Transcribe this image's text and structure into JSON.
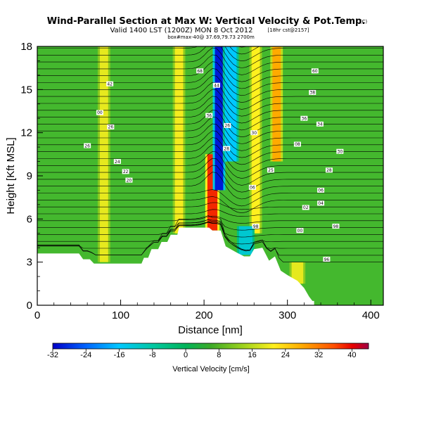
{
  "header": {
    "title": "Wind-Parallel Section at Max W: Vertical Velocity & Pot.Temp.",
    "title_mark": "(C)",
    "valid_line": "Valid 1400 LST (1200Z) MON 8 Oct 2012",
    "valid_tag": "[18hr cst@2157]",
    "subline": "box#max-40@ 37.69,79.73 2700m"
  },
  "chart_data": {
    "type": "heatmap",
    "xlabel": "Distance [nm]",
    "ylabel": "Height [Kft MSL]",
    "xlim": [
      0,
      415
    ],
    "ylim": [
      0,
      18
    ],
    "xticks": [
      0,
      100,
      200,
      300,
      400
    ],
    "xtick_labels": [
      "0",
      "100",
      "200",
      "300",
      "400"
    ],
    "yticks": [
      0,
      3,
      6,
      9,
      12,
      15,
      18
    ],
    "ytick_labels": [
      "0",
      "3",
      "6",
      "9",
      "12",
      "15",
      "18"
    ],
    "colorbar": {
      "label": "Vertical Velocity [cm/s]",
      "min": -32,
      "max": 44,
      "ticks": [
        -32,
        -24,
        -16,
        -8,
        0,
        8,
        16,
        24,
        32,
        40
      ],
      "tick_labels": [
        "-32",
        "-24",
        "-16",
        "-8",
        "0",
        "8",
        "16",
        "24",
        "32",
        "40"
      ]
    },
    "terrain": [
      [
        0,
        3.6
      ],
      [
        50,
        3.6
      ],
      [
        55,
        3.2
      ],
      [
        63,
        3.2
      ],
      [
        68,
        2.9
      ],
      [
        125,
        2.9
      ],
      [
        128,
        3.3
      ],
      [
        133,
        3.3
      ],
      [
        137,
        3.9
      ],
      [
        145,
        3.9
      ],
      [
        149,
        4.4
      ],
      [
        156,
        4.4
      ],
      [
        160,
        4.9
      ],
      [
        168,
        4.9
      ],
      [
        170,
        5.4
      ],
      [
        206,
        5.4
      ],
      [
        210,
        5.2
      ],
      [
        220,
        5.2
      ],
      [
        226,
        4.1
      ],
      [
        238,
        3.7
      ],
      [
        248,
        3.4
      ],
      [
        255,
        3.4
      ],
      [
        260,
        3.9
      ],
      [
        270,
        4.0
      ],
      [
        278,
        3.1
      ],
      [
        285,
        3.4
      ],
      [
        292,
        2.4
      ],
      [
        300,
        2.1
      ],
      [
        312,
        1.7
      ],
      [
        320,
        1.2
      ],
      [
        326,
        0.6
      ],
      [
        330,
        0.3
      ],
      [
        332,
        0.3
      ],
      [
        332,
        0
      ],
      [
        0,
        0
      ]
    ],
    "vertical_velocity_features": [
      {
        "x_center": 80,
        "width": 10,
        "z_bottom": 3,
        "z_top": 18,
        "w": 14
      },
      {
        "x_center": 170,
        "width": 10,
        "z_bottom": 5,
        "z_top": 18,
        "w": 15
      },
      {
        "x_center": 210,
        "width": 12,
        "z_bottom": 5.2,
        "z_top": 10.5,
        "w": 36
      },
      {
        "x_center": 218,
        "width": 10,
        "z_bottom": 8,
        "z_top": 18,
        "w": -30
      },
      {
        "x_center": 232,
        "width": 14,
        "z_bottom": 10,
        "z_top": 18,
        "w": -16
      },
      {
        "x_center": 262,
        "width": 10,
        "z_bottom": 5,
        "z_top": 18,
        "w": 16
      },
      {
        "x_center": 287,
        "width": 10,
        "z_bottom": 10,
        "z_top": 18,
        "w": 24
      },
      {
        "x_center": 250,
        "width": 16,
        "z_bottom": 3.5,
        "z_top": 5.5,
        "w": -12
      },
      {
        "x_center": 312,
        "width": 14,
        "z_bottom": 1.5,
        "z_top": 3.0,
        "w": 14
      }
    ],
    "isentrope_labels": [
      {
        "x": 195,
        "z": 16.3,
        "label": "68"
      },
      {
        "x": 333,
        "z": 16.3,
        "label": "60"
      },
      {
        "x": 87,
        "z": 15.4,
        "label": "42"
      },
      {
        "x": 215,
        "z": 15.3,
        "label": "44"
      },
      {
        "x": 330,
        "z": 14.8,
        "label": "38"
      },
      {
        "x": 75,
        "z": 13.4,
        "label": "00"
      },
      {
        "x": 206,
        "z": 13.2,
        "label": "36"
      },
      {
        "x": 320,
        "z": 13.0,
        "label": "36"
      },
      {
        "x": 339,
        "z": 12.6,
        "label": "34"
      },
      {
        "x": 88,
        "z": 12.4,
        "label": "26"
      },
      {
        "x": 228,
        "z": 12.5,
        "label": "26"
      },
      {
        "x": 260,
        "z": 12.0,
        "label": "30"
      },
      {
        "x": 312,
        "z": 11.2,
        "label": "08"
      },
      {
        "x": 60,
        "z": 11.1,
        "label": "26"
      },
      {
        "x": 227,
        "z": 10.9,
        "label": "28"
      },
      {
        "x": 363,
        "z": 10.7,
        "label": "30"
      },
      {
        "x": 96,
        "z": 10.0,
        "label": "24"
      },
      {
        "x": 280,
        "z": 9.4,
        "label": "25"
      },
      {
        "x": 106,
        "z": 9.3,
        "label": "22"
      },
      {
        "x": 350,
        "z": 9.4,
        "label": "28"
      },
      {
        "x": 110,
        "z": 8.7,
        "label": "20"
      },
      {
        "x": 258,
        "z": 8.2,
        "label": "06"
      },
      {
        "x": 340,
        "z": 8.0,
        "label": "06"
      },
      {
        "x": 340,
        "z": 7.1,
        "label": "04"
      },
      {
        "x": 322,
        "z": 6.8,
        "label": "02"
      },
      {
        "x": 262,
        "z": 5.5,
        "label": "98"
      },
      {
        "x": 315,
        "z": 5.2,
        "label": "00"
      },
      {
        "x": 358,
        "z": 5.5,
        "label": "98"
      },
      {
        "x": 347,
        "z": 3.2,
        "label": "96"
      }
    ]
  },
  "colors": {
    "below_terrain": "#ffffff",
    "background_field": "#44b82e",
    "contour": "#000000"
  }
}
